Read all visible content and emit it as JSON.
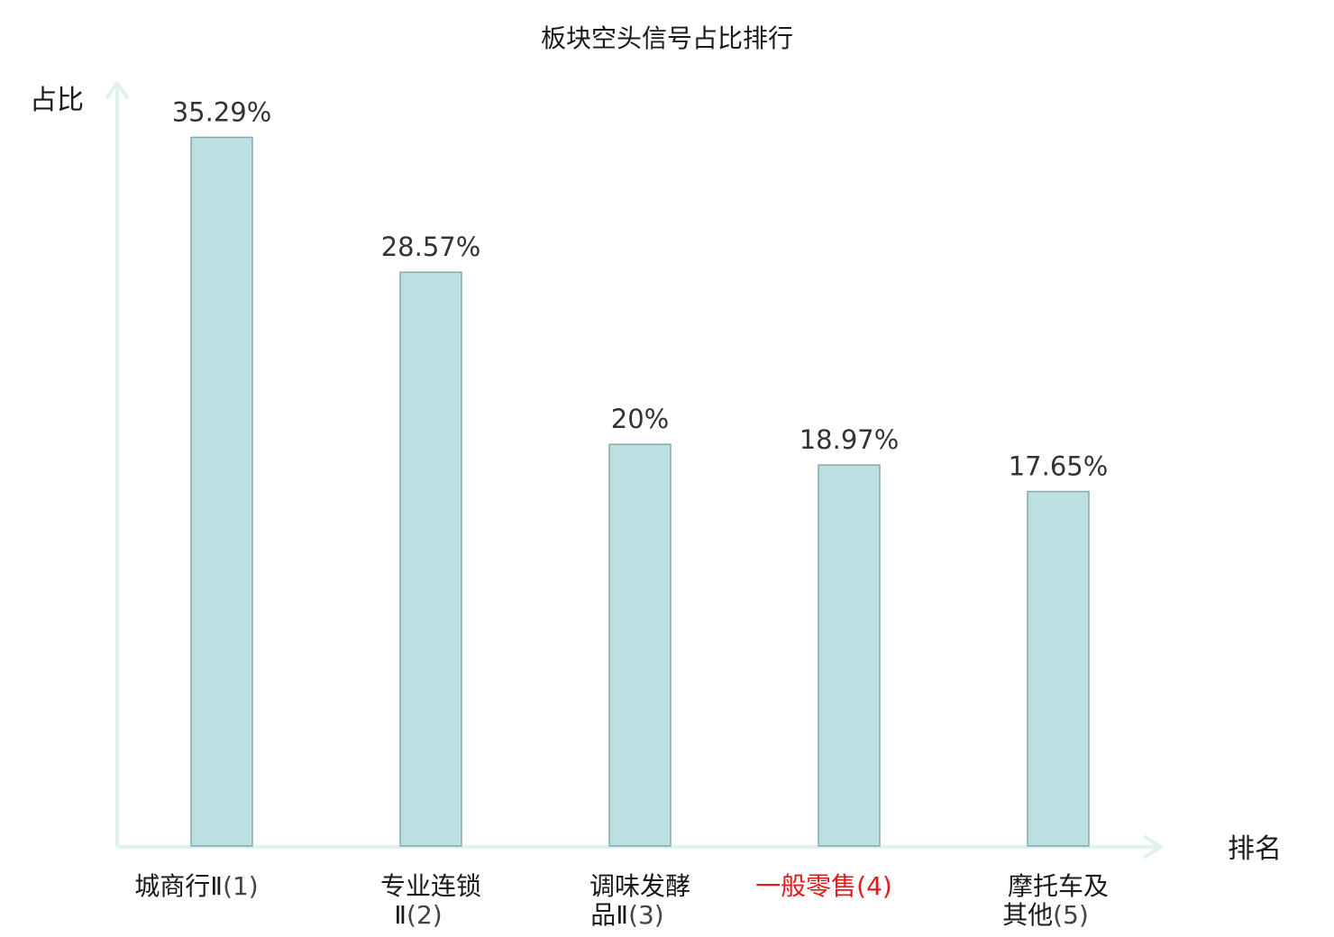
{
  "chart_data": {
    "type": "bar",
    "title": "板块空头信号占比排行",
    "xlabel": "排名",
    "ylabel": "占比",
    "categories": [
      {
        "line1": "城商行Ⅱ",
        "line2": "",
        "rank": "(1)",
        "highlight": false
      },
      {
        "line1": "专业连锁",
        "line2": "Ⅱ",
        "rank": "(2)",
        "highlight": false
      },
      {
        "line1": "调味发酵",
        "line2": "品Ⅱ",
        "rank": "(3)",
        "highlight": false
      },
      {
        "line1": "一般零售",
        "line2": "",
        "rank": "(4)",
        "highlight": true
      },
      {
        "line1": "摩托车及",
        "line2": "其他",
        "rank": "(5)",
        "highlight": false
      }
    ],
    "values": [
      35.29,
      28.57,
      20,
      18.97,
      17.65
    ],
    "value_labels": [
      "35.29%",
      "28.57%",
      "20%",
      "18.97%",
      "17.65%"
    ],
    "ylim": [
      0,
      38
    ],
    "grid": false,
    "legend": "none"
  },
  "colors": {
    "bar_fill": "#bce0e1",
    "bar_stroke": "#86a9a9",
    "axis": "#e0f2ef",
    "label_text": "#1a1a1a",
    "rank_text": "#444444",
    "highlight_text": "#e31a1c",
    "value_text": "#333333"
  }
}
